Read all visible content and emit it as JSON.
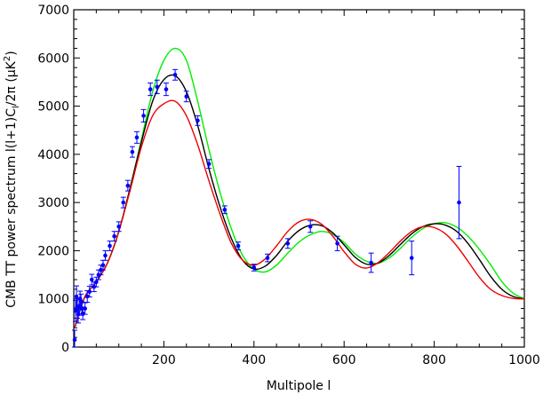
{
  "chart_data": {
    "type": "line",
    "title": "",
    "xlabel": "Multipole  l",
    "ylabel": "CMB TT power spectrum   l(l+1)C_l/2π (μK²)",
    "ylabel_parts": {
      "main": "CMB TT power spectrum   l(l+1)C",
      "sub": "l",
      "after": "/2π (μK",
      "sup": "2",
      "close": ")"
    },
    "xlim": [
      0,
      1000
    ],
    "ylim": [
      0,
      7000
    ],
    "x_ticks": [
      200,
      400,
      600,
      800,
      1000
    ],
    "y_ticks": [
      0,
      1000,
      2000,
      3000,
      4000,
      5000,
      6000,
      7000
    ],
    "grid": false,
    "legend": false,
    "series": [
      {
        "color": "#00ee00",
        "x": [
          2,
          25,
          50,
          75,
          100,
          125,
          150,
          175,
          200,
          225,
          250,
          275,
          300,
          325,
          350,
          375,
          400,
          425,
          450,
          475,
          500,
          525,
          550,
          575,
          600,
          625,
          650,
          675,
          700,
          725,
          750,
          775,
          800,
          825,
          850,
          875,
          900,
          925,
          950,
          975,
          1000
        ],
        "values": [
          400,
          1050,
          1350,
          1750,
          2400,
          3300,
          4300,
          5300,
          5950,
          6200,
          5950,
          5100,
          4100,
          3200,
          2450,
          1900,
          1620,
          1560,
          1700,
          1950,
          2180,
          2330,
          2400,
          2340,
          2170,
          1930,
          1780,
          1740,
          1850,
          2050,
          2280,
          2460,
          2560,
          2580,
          2490,
          2300,
          2030,
          1710,
          1360,
          1120,
          1000
        ]
      },
      {
        "color": "#000000",
        "x": [
          2,
          25,
          50,
          75,
          100,
          125,
          150,
          175,
          200,
          225,
          250,
          275,
          300,
          325,
          350,
          375,
          400,
          425,
          450,
          475,
          500,
          525,
          550,
          575,
          600,
          625,
          650,
          675,
          700,
          725,
          750,
          775,
          800,
          825,
          850,
          875,
          900,
          925,
          950,
          975,
          1000
        ],
        "values": [
          400,
          1050,
          1350,
          1750,
          2400,
          3300,
          4250,
          5100,
          5550,
          5630,
          5300,
          4600,
          3700,
          2900,
          2250,
          1800,
          1620,
          1680,
          1900,
          2200,
          2420,
          2530,
          2520,
          2370,
          2120,
          1860,
          1720,
          1740,
          1900,
          2130,
          2350,
          2500,
          2560,
          2530,
          2400,
          2150,
          1820,
          1470,
          1200,
          1050,
          1000
        ]
      },
      {
        "color": "#ee0000",
        "x": [
          2,
          25,
          50,
          75,
          100,
          125,
          150,
          175,
          200,
          225,
          250,
          275,
          300,
          325,
          350,
          375,
          400,
          425,
          450,
          475,
          500,
          525,
          550,
          575,
          600,
          625,
          650,
          675,
          700,
          725,
          750,
          775,
          800,
          825,
          850,
          875,
          900,
          925,
          950,
          975,
          1000
        ],
        "values": [
          400,
          1050,
          1350,
          1750,
          2400,
          3250,
          4150,
          4800,
          5050,
          5100,
          4800,
          4200,
          3450,
          2750,
          2150,
          1800,
          1700,
          1830,
          2100,
          2400,
          2600,
          2650,
          2550,
          2300,
          1980,
          1720,
          1640,
          1750,
          1960,
          2200,
          2400,
          2500,
          2480,
          2350,
          2100,
          1780,
          1450,
          1200,
          1070,
          1010,
          1000
        ]
      },
      {
        "type": "scatter",
        "color": "#0000ff",
        "x": [
          2,
          4,
          6,
          8,
          10,
          12,
          14,
          16,
          18,
          20,
          25,
          30,
          35,
          40,
          45,
          50,
          55,
          60,
          65,
          70,
          80,
          90,
          100,
          110,
          120,
          130,
          140,
          155,
          170,
          185,
          205,
          225,
          250,
          275,
          300,
          335,
          365,
          400,
          430,
          475,
          525,
          585,
          660,
          750,
          855
        ],
        "values": [
          150,
          750,
          1050,
          800,
          680,
          850,
          1000,
          950,
          800,
          700,
          800,
          1050,
          1150,
          1400,
          1250,
          1350,
          1500,
          1600,
          1700,
          1900,
          2100,
          2300,
          2500,
          3000,
          3350,
          4050,
          4350,
          4800,
          5350,
          5400,
          5350,
          5650,
          5200,
          4700,
          3800,
          2850,
          2100,
          1650,
          1850,
          2150,
          2500,
          2150,
          1750,
          1850,
          3000
        ],
        "errors": [
          200,
          220,
          220,
          200,
          180,
          160,
          160,
          150,
          140,
          130,
          120,
          120,
          110,
          110,
          100,
          100,
          100,
          100,
          100,
          100,
          100,
          100,
          100,
          110,
          110,
          110,
          120,
          130,
          130,
          140,
          130,
          110,
          110,
          100,
          90,
          80,
          80,
          70,
          80,
          100,
          120,
          150,
          200,
          350,
          750
        ]
      }
    ]
  }
}
